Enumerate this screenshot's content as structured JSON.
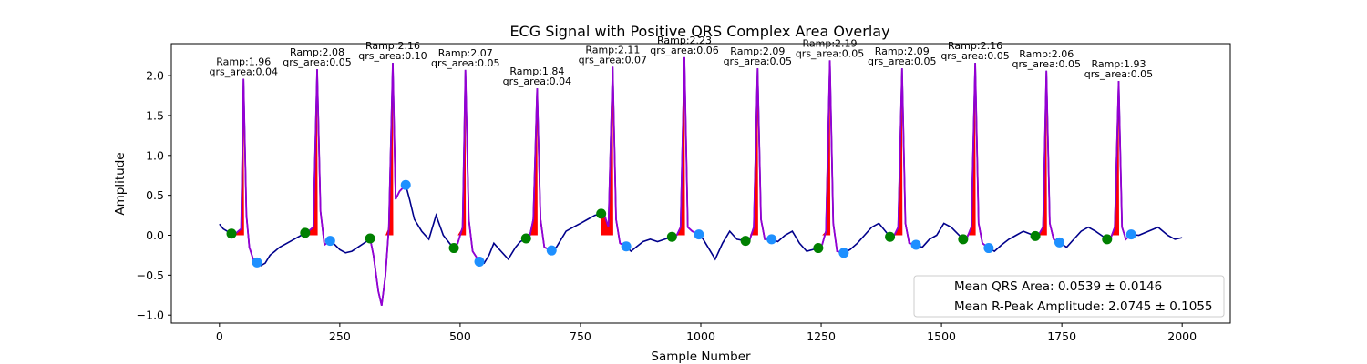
{
  "chart_data": {
    "type": "line",
    "title": "ECG Signal with Positive QRS Complex Area Overlay",
    "xlabel": "Sample Number",
    "ylabel": "Amplitude",
    "xlim": [
      -100,
      2100
    ],
    "ylim": [
      -1.1,
      2.4
    ],
    "xticks": [
      0,
      250,
      500,
      750,
      1000,
      1250,
      1500,
      1750,
      2000
    ],
    "yticks": [
      -1.0,
      -0.5,
      0.0,
      0.5,
      1.0,
      1.5,
      2.0
    ],
    "xtick_labels": [
      "0",
      "250",
      "500",
      "750",
      "1000",
      "1250",
      "1500",
      "1750",
      "2000"
    ],
    "ytick_labels": [
      "−1.0",
      "−0.5",
      "0.0",
      "0.5",
      "1.0",
      "1.5",
      "2.0"
    ],
    "grid": false,
    "colors": {
      "signal": "#00008b",
      "qrs_segment": "#9400d3",
      "qrs_area": "#ff0000",
      "q_point": "#008000",
      "s_point": "#1e90ff"
    },
    "beats": [
      {
        "r": 50,
        "ramp": 1.96,
        "area": 0.04,
        "q": [
          25,
          0.02
        ],
        "s": [
          78,
          -0.34
        ],
        "label_ramp": "Ramp:1.96",
        "label_area": "qrs_area:0.04"
      },
      {
        "r": 203,
        "ramp": 2.08,
        "area": 0.05,
        "q": [
          178,
          0.03
        ],
        "s": [
          230,
          -0.07
        ],
        "label_ramp": "Ramp:2.08",
        "label_area": "qrs_area:0.05"
      },
      {
        "r": 360,
        "ramp": 2.16,
        "area": 0.1,
        "q": [
          313,
          -0.04
        ],
        "s": [
          387,
          0.63
        ],
        "label_ramp": "Ramp:2.16",
        "label_area": "qrs_area:0.10"
      },
      {
        "r": 511,
        "ramp": 2.07,
        "area": 0.05,
        "q": [
          487,
          -0.16
        ],
        "s": [
          540,
          -0.33
        ],
        "label_ramp": "Ramp:2.07",
        "label_area": "qrs_area:0.05"
      },
      {
        "r": 660,
        "ramp": 1.84,
        "area": 0.04,
        "q": [
          637,
          -0.04
        ],
        "s": [
          690,
          -0.19
        ],
        "label_ramp": "Ramp:1.84",
        "label_area": "qrs_area:0.04"
      },
      {
        "r": 817,
        "ramp": 2.11,
        "area": 0.07,
        "q": [
          793,
          0.27
        ],
        "s": [
          845,
          -0.14
        ],
        "label_ramp": "Ramp:2.11",
        "label_area": "qrs_area:0.07"
      },
      {
        "r": 966,
        "ramp": 2.23,
        "area": 0.06,
        "q": [
          940,
          -0.02
        ],
        "s": [
          996,
          0.01
        ],
        "label_ramp": "Ramp:2.23",
        "label_area": "qrs_area:0.06"
      },
      {
        "r": 1118,
        "ramp": 2.09,
        "area": 0.05,
        "q": [
          1093,
          -0.07
        ],
        "s": [
          1147,
          -0.05
        ],
        "label_ramp": "Ramp:2.09",
        "label_area": "qrs_area:0.05"
      },
      {
        "r": 1268,
        "ramp": 2.19,
        "area": 0.05,
        "q": [
          1244,
          -0.16
        ],
        "s": [
          1297,
          -0.22
        ],
        "label_ramp": "Ramp:2.19",
        "label_area": "qrs_area:0.05"
      },
      {
        "r": 1418,
        "ramp": 2.09,
        "area": 0.05,
        "q": [
          1393,
          -0.02
        ],
        "s": [
          1447,
          -0.12
        ],
        "label_ramp": "Ramp:2.09",
        "label_area": "qrs_area:0.05"
      },
      {
        "r": 1570,
        "ramp": 2.16,
        "area": 0.05,
        "q": [
          1545,
          -0.05
        ],
        "s": [
          1598,
          -0.16
        ],
        "label_ramp": "Ramp:2.16",
        "label_area": "qrs_area:0.05"
      },
      {
        "r": 1718,
        "ramp": 2.06,
        "area": 0.05,
        "q": [
          1695,
          -0.01
        ],
        "s": [
          1745,
          -0.09
        ],
        "label_ramp": "Ramp:2.06",
        "label_area": "qrs_area:0.05"
      },
      {
        "r": 1868,
        "ramp": 1.93,
        "area": 0.05,
        "q": [
          1844,
          -0.05
        ],
        "s": [
          1894,
          0.01
        ],
        "label_ramp": "Ramp:1.93",
        "label_area": "qrs_area:0.05"
      }
    ],
    "signal": {
      "x": [
        0,
        8,
        16,
        25,
        35,
        45,
        50,
        56,
        62,
        70,
        78,
        86,
        95,
        105,
        115,
        125,
        140,
        155,
        170,
        178,
        185,
        195,
        203,
        210,
        218,
        230,
        240,
        250,
        262,
        275,
        290,
        305,
        313,
        320,
        330,
        337,
        345,
        352,
        360,
        366,
        374,
        387,
        395,
        405,
        420,
        435,
        450,
        465,
        478,
        487,
        495,
        505,
        511,
        518,
        526,
        540,
        550,
        560,
        570,
        585,
        600,
        615,
        625,
        637,
        645,
        652,
        660,
        667,
        675,
        690,
        700,
        710,
        720,
        735,
        750,
        765,
        780,
        793,
        800,
        808,
        817,
        824,
        832,
        845,
        855,
        865,
        880,
        895,
        910,
        925,
        940,
        950,
        958,
        966,
        973,
        982,
        996,
        1005,
        1015,
        1030,
        1045,
        1060,
        1075,
        1093,
        1102,
        1110,
        1118,
        1125,
        1133,
        1147,
        1160,
        1175,
        1190,
        1205,
        1220,
        1244,
        1252,
        1260,
        1268,
        1275,
        1283,
        1297,
        1310,
        1325,
        1340,
        1355,
        1370,
        1393,
        1402,
        1410,
        1418,
        1425,
        1433,
        1447,
        1460,
        1475,
        1490,
        1505,
        1520,
        1545,
        1553,
        1562,
        1570,
        1577,
        1585,
        1598,
        1610,
        1625,
        1640,
        1655,
        1670,
        1695,
        1703,
        1711,
        1718,
        1725,
        1733,
        1745,
        1760,
        1775,
        1790,
        1805,
        1820,
        1844,
        1852,
        1860,
        1868,
        1875,
        1883,
        1894,
        1910,
        1930,
        1950,
        1970,
        1985,
        2000
      ],
      "y": [
        0.14,
        0.08,
        0.05,
        0.02,
        0.03,
        0.08,
        1.96,
        0.25,
        -0.15,
        -0.3,
        -0.34,
        -0.38,
        -0.35,
        -0.25,
        -0.2,
        -0.15,
        -0.1,
        -0.05,
        0.0,
        0.03,
        0.05,
        0.1,
        2.08,
        0.3,
        -0.12,
        -0.07,
        -0.12,
        -0.18,
        -0.22,
        -0.2,
        -0.14,
        -0.08,
        -0.04,
        -0.25,
        -0.7,
        -0.88,
        -0.5,
        0.1,
        2.16,
        0.45,
        0.55,
        0.63,
        0.45,
        0.2,
        0.05,
        -0.05,
        0.25,
        0.0,
        -0.1,
        -0.16,
        -0.1,
        0.1,
        2.07,
        0.2,
        -0.2,
        -0.33,
        -0.35,
        -0.25,
        -0.1,
        -0.2,
        -0.3,
        -0.15,
        -0.08,
        -0.04,
        0.0,
        0.2,
        1.84,
        0.2,
        -0.15,
        -0.19,
        -0.15,
        -0.05,
        0.05,
        0.1,
        0.15,
        0.2,
        0.25,
        0.27,
        0.25,
        0.1,
        2.11,
        0.2,
        -0.1,
        -0.14,
        -0.2,
        -0.15,
        -0.08,
        -0.05,
        -0.08,
        -0.05,
        -0.02,
        0.0,
        0.1,
        2.23,
        0.1,
        0.05,
        0.01,
        -0.05,
        -0.15,
        -0.3,
        -0.1,
        0.05,
        -0.05,
        -0.07,
        -0.05,
        0.1,
        2.09,
        0.2,
        -0.05,
        -0.05,
        -0.08,
        0.0,
        0.05,
        -0.1,
        -0.2,
        -0.16,
        -0.12,
        0.05,
        2.19,
        0.15,
        -0.2,
        -0.22,
        -0.18,
        -0.1,
        0.0,
        0.1,
        0.15,
        -0.02,
        0.0,
        0.1,
        2.09,
        0.15,
        -0.1,
        -0.12,
        -0.15,
        -0.05,
        0.0,
        0.15,
        0.1,
        -0.05,
        -0.03,
        0.1,
        2.16,
        0.15,
        -0.1,
        -0.16,
        -0.2,
        -0.12,
        -0.05,
        0.0,
        0.05,
        -0.01,
        0.02,
        0.1,
        2.06,
        0.15,
        -0.05,
        -0.09,
        -0.15,
        -0.05,
        0.05,
        0.1,
        0.05,
        -0.05,
        -0.03,
        0.1,
        1.93,
        0.1,
        -0.05,
        0.01,
        0.0,
        0.05,
        0.1,
        0.0,
        -0.05,
        -0.03
      ]
    },
    "legend": {
      "position": "lower-right",
      "entries": [
        "Mean QRS Area: 0.0539 ± 0.0146",
        "Mean R-Peak Amplitude: 2.0745 ± 0.1055"
      ]
    }
  }
}
